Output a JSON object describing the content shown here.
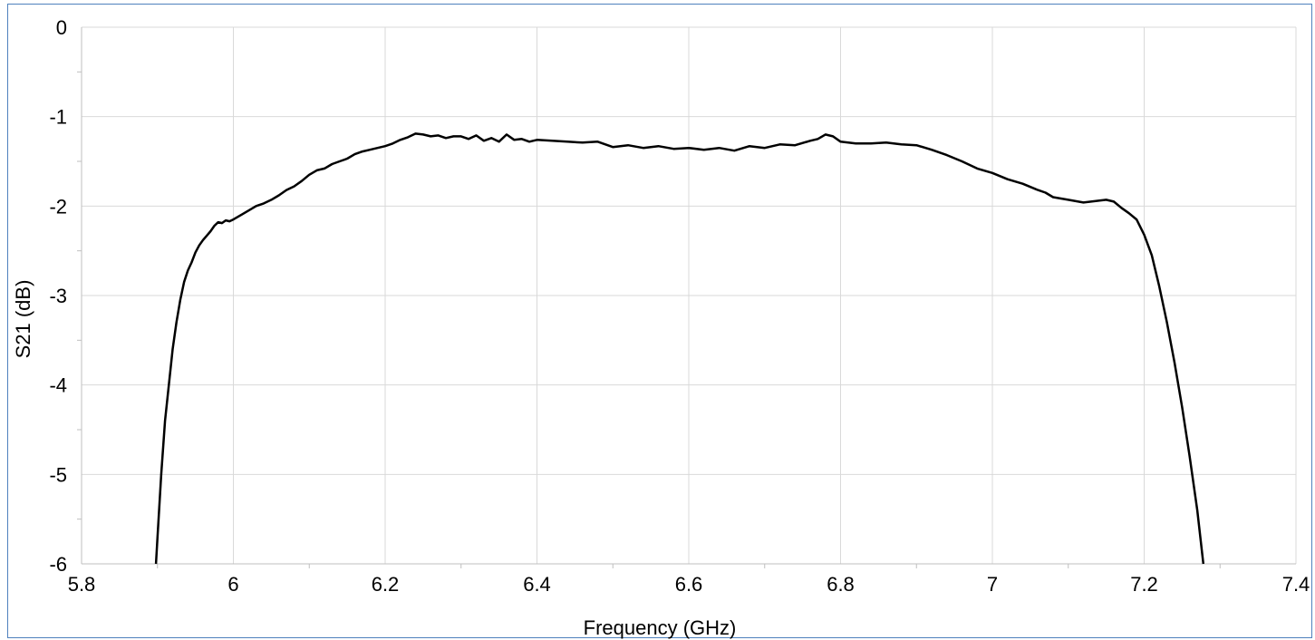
{
  "chart_data": {
    "type": "line",
    "title": "",
    "xlabel": "Frequency (GHz)",
    "ylabel": "S21 (dB)",
    "xlim": [
      5.8,
      7.4
    ],
    "ylim": [
      -6,
      0
    ],
    "x_ticks": [
      5.8,
      6,
      6.2,
      6.4,
      6.6,
      6.8,
      7,
      7.2,
      7.4
    ],
    "x_tick_labels": [
      "5.8",
      "6",
      "6.2",
      "6.4",
      "6.6",
      "6.8",
      "7",
      "7.2",
      "7.4"
    ],
    "y_ticks": [
      0,
      -1,
      -2,
      -3,
      -4,
      -5,
      -6
    ],
    "y_tick_labels": [
      "0",
      "-1",
      "-2",
      "-3",
      "-4",
      "-5",
      "-6"
    ],
    "grid": true,
    "legend": "none",
    "colors": {
      "line": "#000000",
      "grid": "#d9d9d9",
      "frame": "#4f81bd",
      "axis": "#bfbfbf"
    },
    "series": [
      {
        "x": [
          5.898,
          5.9,
          5.905,
          5.91,
          5.915,
          5.92,
          5.925,
          5.93,
          5.935,
          5.94,
          5.945,
          5.95,
          5.955,
          5.96,
          5.965,
          5.97,
          5.975,
          5.98,
          5.985,
          5.99,
          5.995,
          6.0,
          6.01,
          6.02,
          6.03,
          6.04,
          6.05,
          6.06,
          6.07,
          6.08,
          6.09,
          6.1,
          6.11,
          6.12,
          6.13,
          6.14,
          6.15,
          6.16,
          6.17,
          6.18,
          6.19,
          6.2,
          6.21,
          6.22,
          6.23,
          6.24,
          6.25,
          6.26,
          6.27,
          6.28,
          6.29,
          6.3,
          6.31,
          6.32,
          6.33,
          6.34,
          6.35,
          6.36,
          6.37,
          6.38,
          6.39,
          6.4,
          6.42,
          6.44,
          6.46,
          6.48,
          6.5,
          6.52,
          6.54,
          6.56,
          6.58,
          6.6,
          6.62,
          6.64,
          6.66,
          6.68,
          6.7,
          6.72,
          6.74,
          6.76,
          6.77,
          6.78,
          6.79,
          6.8,
          6.82,
          6.84,
          6.86,
          6.88,
          6.9,
          6.92,
          6.94,
          6.96,
          6.98,
          7.0,
          7.02,
          7.04,
          7.06,
          7.07,
          7.08,
          7.1,
          7.12,
          7.14,
          7.15,
          7.16,
          7.17,
          7.18,
          7.19,
          7.2,
          7.21,
          7.22,
          7.23,
          7.24,
          7.25,
          7.26,
          7.27,
          7.278
        ],
        "y": [
          -6.0,
          -5.7,
          -5.0,
          -4.4,
          -4.0,
          -3.6,
          -3.3,
          -3.05,
          -2.85,
          -2.72,
          -2.63,
          -2.52,
          -2.44,
          -2.38,
          -2.33,
          -2.28,
          -2.22,
          -2.18,
          -2.19,
          -2.16,
          -2.17,
          -2.15,
          -2.1,
          -2.05,
          -2.0,
          -1.97,
          -1.93,
          -1.88,
          -1.82,
          -1.78,
          -1.72,
          -1.65,
          -1.6,
          -1.58,
          -1.53,
          -1.5,
          -1.47,
          -1.42,
          -1.39,
          -1.37,
          -1.35,
          -1.33,
          -1.3,
          -1.26,
          -1.23,
          -1.19,
          -1.2,
          -1.22,
          -1.21,
          -1.24,
          -1.22,
          -1.22,
          -1.25,
          -1.21,
          -1.27,
          -1.24,
          -1.28,
          -1.2,
          -1.26,
          -1.25,
          -1.28,
          -1.26,
          -1.27,
          -1.28,
          -1.29,
          -1.28,
          -1.34,
          -1.32,
          -1.35,
          -1.33,
          -1.36,
          -1.35,
          -1.37,
          -1.35,
          -1.38,
          -1.33,
          -1.35,
          -1.31,
          -1.32,
          -1.27,
          -1.25,
          -1.2,
          -1.22,
          -1.28,
          -1.3,
          -1.3,
          -1.29,
          -1.31,
          -1.32,
          -1.37,
          -1.43,
          -1.5,
          -1.58,
          -1.63,
          -1.7,
          -1.75,
          -1.82,
          -1.85,
          -1.9,
          -1.93,
          -1.96,
          -1.94,
          -1.93,
          -1.95,
          -2.02,
          -2.08,
          -2.15,
          -2.32,
          -2.55,
          -2.9,
          -3.3,
          -3.75,
          -4.25,
          -4.8,
          -5.4,
          -6.0
        ]
      }
    ]
  }
}
